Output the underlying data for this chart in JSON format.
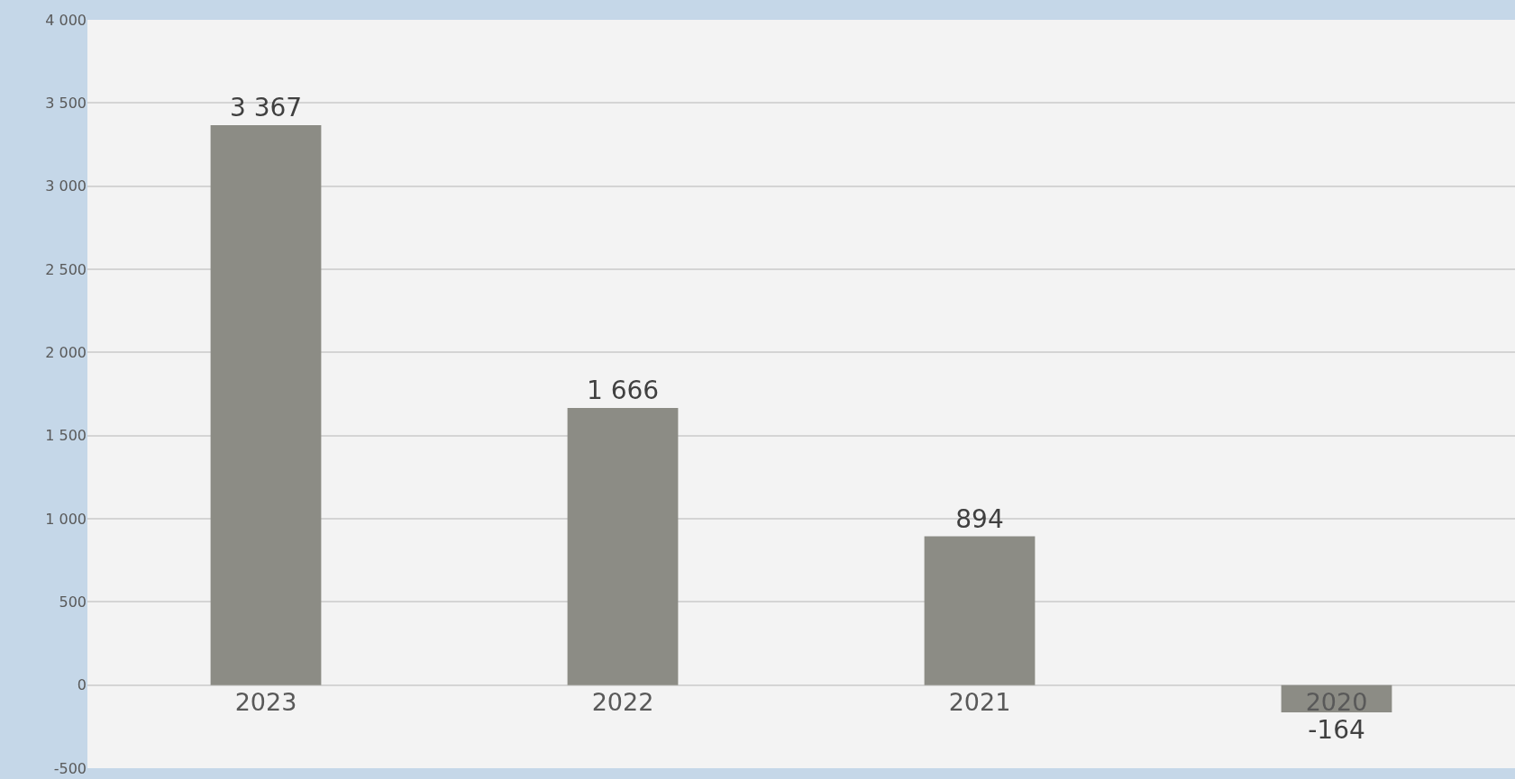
{
  "chart_data": {
    "type": "bar",
    "categories": [
      "2023",
      "2022",
      "2021",
      "2020"
    ],
    "values": [
      3367,
      1666,
      894,
      -164
    ],
    "value_labels": [
      "3 367",
      "1 666",
      "894",
      "-164"
    ],
    "color": "#8c8c85",
    "ylim": [
      -500,
      4000
    ],
    "yticks": [
      {
        "value": -500,
        "label": "-500"
      },
      {
        "value": 0,
        "label": "0"
      },
      {
        "value": 500,
        "label": "500"
      },
      {
        "value": 1000,
        "label": "1 000"
      },
      {
        "value": 1500,
        "label": "1 500"
      },
      {
        "value": 2000,
        "label": "2 000"
      },
      {
        "value": 2500,
        "label": "2 500"
      },
      {
        "value": 3000,
        "label": "3 000"
      },
      {
        "value": 3500,
        "label": "3 500"
      },
      {
        "value": 4000,
        "label": "4 000"
      }
    ],
    "grid": "y"
  }
}
